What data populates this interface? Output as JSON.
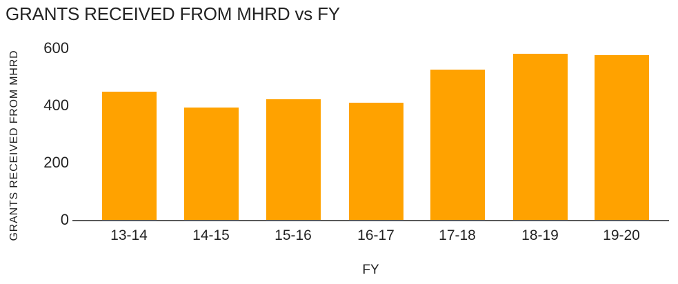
{
  "colors": {
    "bar": "#FFA200",
    "axis_line": "#595959",
    "text": "#232323"
  },
  "chart_data": {
    "type": "bar",
    "title": "GRANTS RECEIVED FROM MHRD vs FY",
    "xlabel": "FY",
    "ylabel": "GRANTS RECEIVED FROM MHRD",
    "categories": [
      "13-14",
      "14-15",
      "15-16",
      "16-17",
      "17-18",
      "18-19",
      "19-20"
    ],
    "values": [
      447,
      392,
      421,
      409,
      526,
      580,
      576
    ],
    "ylim": [
      0,
      600
    ],
    "yticks": [
      0,
      200,
      400,
      600
    ],
    "grid": false,
    "legend": "none",
    "bar_color": "#FFA200"
  }
}
